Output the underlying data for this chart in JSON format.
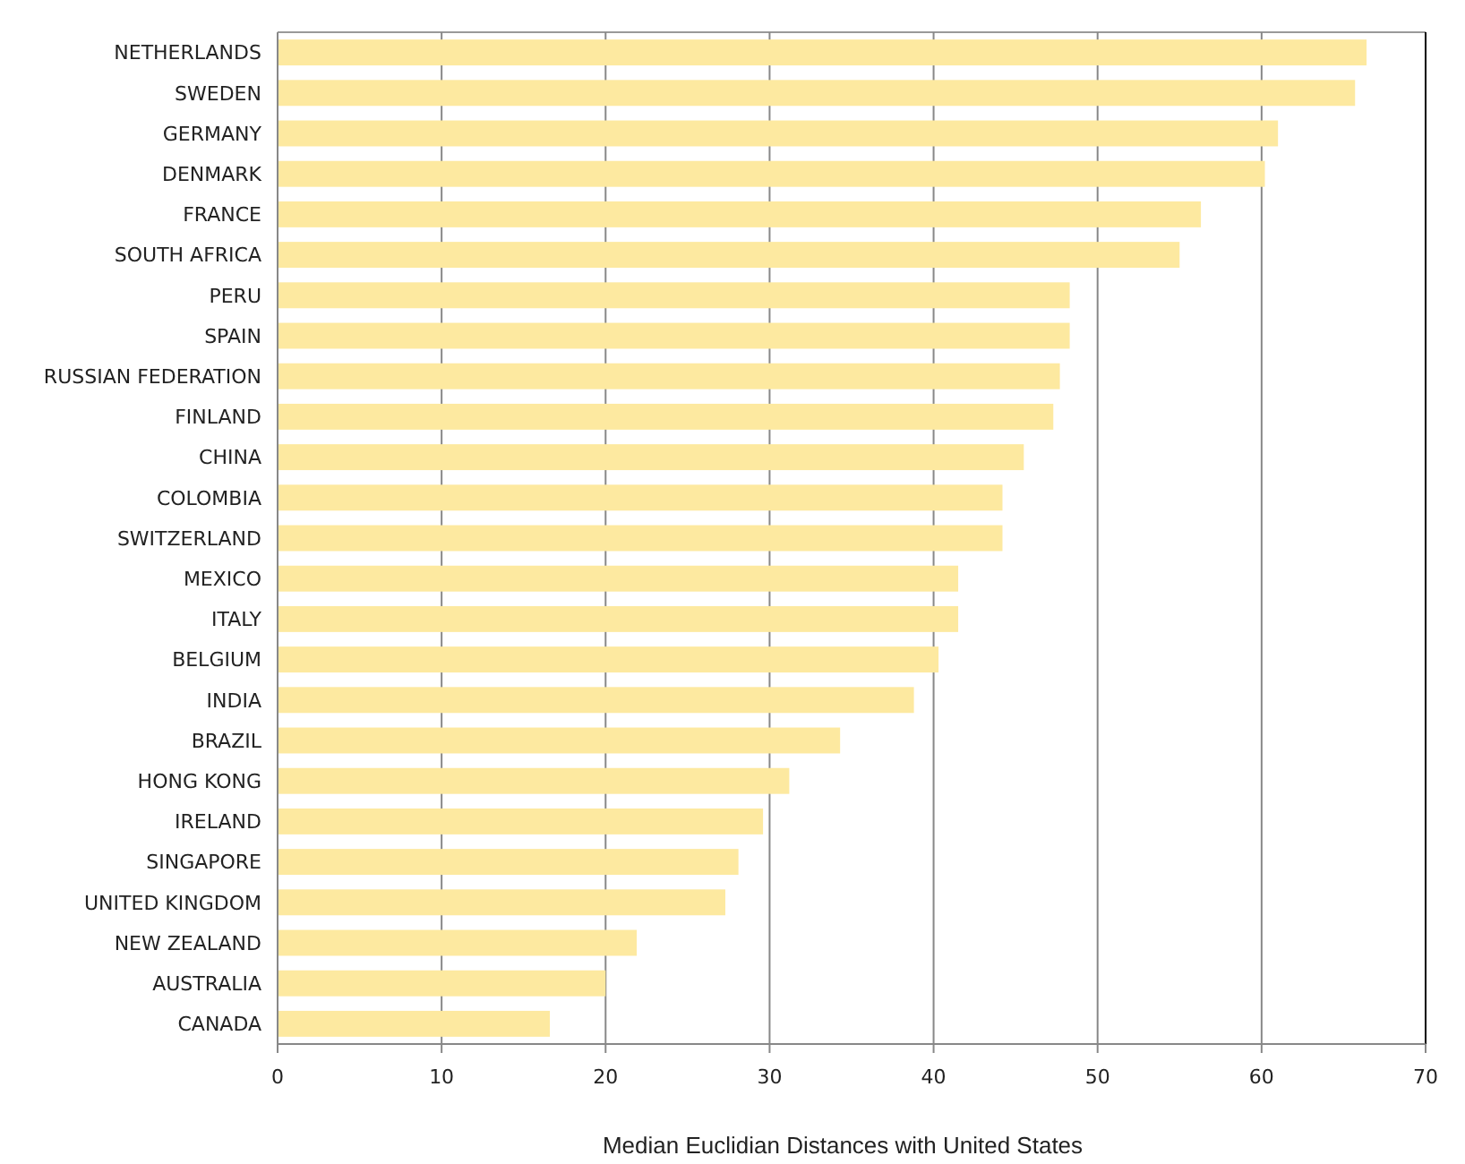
{
  "chart_data": {
    "type": "bar",
    "orientation": "horizontal",
    "xlabel": "Median Euclidian Distances with United States",
    "categories": [
      "NETHERLANDS",
      "SWEDEN",
      "GERMANY",
      "DENMARK",
      "FRANCE",
      "SOUTH AFRICA",
      "PERU",
      "SPAIN",
      "RUSSIAN FEDERATION",
      "FINLAND",
      "CHINA",
      "COLOMBIA",
      "SWITZERLAND",
      "MEXICO",
      "ITALY",
      "BELGIUM",
      "INDIA",
      "BRAZIL",
      "HONG KONG",
      "IRELAND",
      "SINGAPORE",
      "UNITED KINGDOM",
      "NEW ZEALAND",
      "AUSTRALIA",
      "CANADA"
    ],
    "values": [
      66.4,
      65.7,
      61.0,
      60.2,
      56.3,
      55.0,
      48.3,
      48.3,
      47.7,
      47.3,
      45.5,
      44.2,
      44.2,
      41.5,
      41.5,
      40.3,
      38.8,
      34.3,
      31.2,
      29.6,
      28.1,
      27.3,
      21.9,
      20.0,
      16.6
    ],
    "color": "#fde9a0",
    "xlim": [
      0,
      70
    ],
    "xticks": [
      0,
      10,
      20,
      30,
      40,
      50,
      60,
      70
    ],
    "grid": "x"
  }
}
